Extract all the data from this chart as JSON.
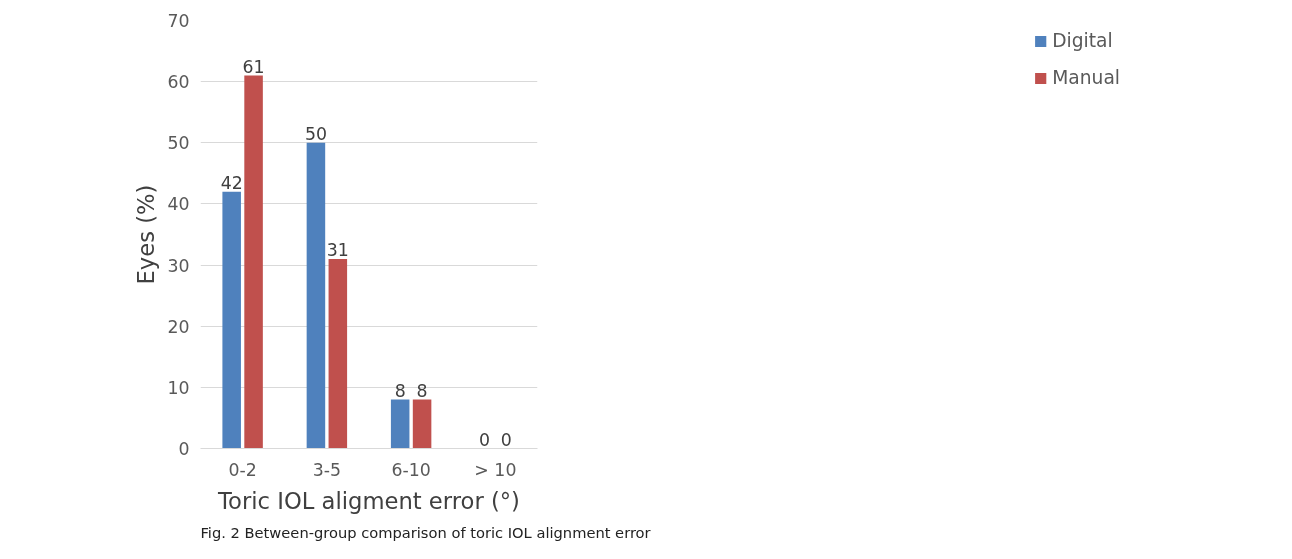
{
  "chart_data": {
    "type": "bar",
    "xlabel": "Toric IOL aligment error (°)",
    "ylabel": "Eyes (%)",
    "categories": [
      "0-2",
      "3-5",
      "6-10",
      "> 10"
    ],
    "series": [
      {
        "name": "Digital",
        "color": "#4f81bd",
        "values": [
          42,
          50,
          8,
          0
        ]
      },
      {
        "name": "Manual",
        "color": "#c0504d",
        "values": [
          61,
          31,
          8,
          0
        ]
      }
    ],
    "ylim": [
      0,
      70
    ],
    "yticks": [
      0,
      10,
      20,
      30,
      40,
      50,
      60,
      70
    ],
    "grid": "y",
    "legend": "right",
    "data_labels": true,
    "annotations": [
      "Fig. 2  Between-group comparison of toric IOL alignment error"
    ]
  }
}
